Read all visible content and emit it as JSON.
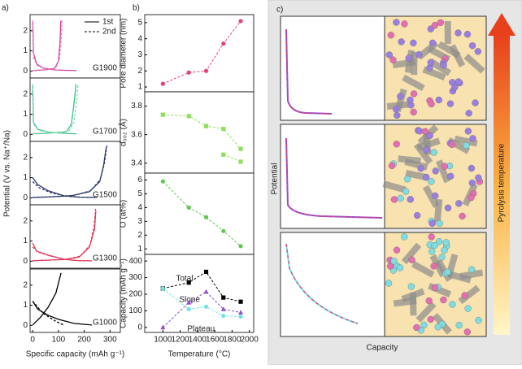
{
  "chart_data": [
    {
      "type": "line",
      "panel": "a)",
      "ylabel": "Potential (V vs. Na⁺/Na)",
      "label": "G1900",
      "label_color": "#d63f9e",
      "xlim": [
        -10,
        340
      ],
      "ylim": [
        -0.35,
        2.8
      ],
      "yticks": [
        0,
        1,
        2
      ],
      "legend": "upper right",
      "legend_color": "#000000",
      "series": [
        {
          "name": "1st",
          "color": "#d63f9e",
          "dash": false,
          "x": [
            0,
            3,
            15,
            40,
            90,
            170,
            null,
            0,
            40,
            85,
            100,
            106,
            109
          ],
          "values": [
            2.5,
            0.9,
            0.35,
            0.15,
            0.05,
            0.02,
            null,
            0.02,
            0.05,
            0.12,
            0.5,
            1.4,
            2.5
          ]
        },
        {
          "name": "2nd",
          "color": "#e07fc0",
          "dash": true,
          "x": [
            0,
            4,
            20,
            50,
            100,
            null,
            0,
            40,
            90,
            104,
            110,
            114
          ],
          "values": [
            2.5,
            0.6,
            0.25,
            0.1,
            0.03,
            null,
            0.03,
            0.06,
            0.15,
            0.6,
            1.5,
            2.5
          ]
        }
      ]
    },
    {
      "type": "line",
      "label": "G1700",
      "label_color": "#3cbf8a",
      "xlim": [
        -10,
        340
      ],
      "ylim": [
        -0.35,
        2.8
      ],
      "yticks": [
        0,
        1,
        2
      ],
      "series": [
        {
          "color": "#3cbf8a",
          "dash": false,
          "x": [
            0,
            3,
            20,
            60,
            120,
            170,
            null,
            0,
            50,
            130,
            150,
            160,
            168
          ],
          "values": [
            2.5,
            0.6,
            0.25,
            0.12,
            0.05,
            0.03,
            null,
            0.03,
            0.05,
            0.12,
            0.5,
            1.5,
            2.5
          ]
        },
        {
          "color": "#7fd9b0",
          "dash": true,
          "x": [
            0,
            4,
            25,
            70,
            130,
            null,
            0,
            60,
            140,
            160,
            170,
            176
          ],
          "values": [
            2.5,
            0.5,
            0.2,
            0.1,
            0.04,
            null,
            0.04,
            0.07,
            0.15,
            0.6,
            1.6,
            2.5
          ]
        }
      ]
    },
    {
      "type": "line",
      "label": "G1500",
      "label_color": "#2f3b6b",
      "xlim": [
        -10,
        340
      ],
      "ylim": [
        -0.35,
        2.8
      ],
      "yticks": [
        0,
        1,
        2
      ],
      "series": [
        {
          "color": "#2f3b6b",
          "dash": false,
          "x": [
            0,
            20,
            60,
            120,
            180,
            250,
            null,
            0,
            60,
            150,
            220,
            260,
            275,
            285
          ],
          "values": [
            1.0,
            0.65,
            0.35,
            0.1,
            0.03,
            0.02,
            null,
            0.02,
            0.04,
            0.1,
            0.3,
            0.8,
            1.6,
            2.5
          ]
        },
        {
          "color": "#2f3b6b",
          "dash": true,
          "x": [
            0,
            25,
            70,
            130,
            190,
            240,
            null,
            0,
            70,
            160,
            225,
            262,
            278,
            288
          ],
          "values": [
            0.8,
            0.5,
            0.25,
            0.08,
            0.03,
            0.02,
            null,
            0.02,
            0.05,
            0.12,
            0.35,
            0.9,
            1.7,
            2.6
          ]
        }
      ]
    },
    {
      "type": "line",
      "label": "G1300",
      "label_color": "#e23a5a",
      "xlim": [
        -10,
        340
      ],
      "ylim": [
        -0.35,
        2.8
      ],
      "yticks": [
        0,
        1,
        2
      ],
      "series": [
        {
          "color": "#e23a5a",
          "dash": false,
          "x": [
            0,
            15,
            60,
            120,
            170,
            230,
            null,
            0,
            50,
            120,
            180,
            220,
            240,
            245
          ],
          "values": [
            0.9,
            0.5,
            0.3,
            0.1,
            0.03,
            0.02,
            null,
            0.02,
            0.05,
            0.08,
            0.2,
            0.7,
            1.6,
            2.5
          ]
        },
        {
          "color": "#e23a5a",
          "dash": true,
          "x": [
            0,
            20,
            70,
            130,
            180,
            225,
            null,
            0,
            60,
            130,
            185,
            222,
            238,
            244
          ],
          "values": [
            0.7,
            0.45,
            0.25,
            0.08,
            0.03,
            0.02,
            null,
            0.02,
            0.05,
            0.1,
            0.25,
            0.8,
            1.7,
            2.6
          ]
        }
      ]
    },
    {
      "type": "line",
      "label": "G1000",
      "label_color": "#000000",
      "xlim": [
        -10,
        340
      ],
      "ylim": [
        -0.35,
        2.8
      ],
      "yticks": [
        0,
        1,
        2
      ],
      "xticks": [
        0,
        100,
        200,
        300
      ],
      "xlabel": "Specific capacity (mAh g⁻¹)",
      "series": [
        {
          "color": "#000000",
          "dash": false,
          "x": [
            0,
            20,
            60,
            100,
            160,
            230,
            null,
            0,
            30,
            60,
            90,
            110
          ],
          "values": [
            1.2,
            0.8,
            0.5,
            0.3,
            0.1,
            0.02,
            null,
            0.02,
            0.4,
            0.9,
            1.6,
            2.6
          ]
        },
        {
          "color": "#000000",
          "dash": true,
          "x": [
            0,
            40,
            90,
            120
          ],
          "values": [
            1.2,
            0.6,
            0.2,
            0.02
          ]
        }
      ]
    },
    {
      "type": "scatter-line",
      "panel": "b)",
      "ylabel": "Pore diameter (nm)",
      "x": [
        1000,
        1300,
        1500,
        1700,
        1900
      ],
      "xlim": [
        790,
        2050
      ],
      "ylim": [
        0.7,
        5.5
      ],
      "yticks": [
        1,
        2,
        3,
        4,
        5
      ],
      "series": [
        {
          "color": "#e5407c",
          "dash": true,
          "marker": "circle",
          "values": [
            1.2,
            1.9,
            2.0,
            3.7,
            5.1
          ]
        }
      ]
    },
    {
      "type": "scatter-line",
      "ylabel": "d₀₀₂ (Å)",
      "x": [
        1000,
        1300,
        1500,
        1700,
        1900
      ],
      "xlim": [
        790,
        2050
      ],
      "ylim": [
        3.33,
        3.9
      ],
      "yticks": [
        3.4,
        3.6,
        3.8
      ],
      "series": [
        {
          "color": "#8ee05a",
          "dash": true,
          "marker": "square",
          "values": [
            3.74,
            3.73,
            3.66,
            3.64,
            3.5
          ]
        },
        {
          "color": "#8ee05a",
          "dash": true,
          "marker": "square",
          "values": [
            null,
            null,
            null,
            3.46,
            3.41
          ]
        }
      ]
    },
    {
      "type": "scatter-line",
      "ylabel": "O (at%)",
      "x": [
        1000,
        1300,
        1500,
        1700,
        1900
      ],
      "xlim": [
        790,
        2050
      ],
      "ylim": [
        0.6,
        6.5
      ],
      "yticks": [
        1,
        2,
        3,
        4,
        5,
        6
      ],
      "series": [
        {
          "color": "#5ec94e",
          "dash": true,
          "marker": "circle",
          "values": [
            5.9,
            4.0,
            3.3,
            2.3,
            1.2
          ]
        }
      ]
    },
    {
      "type": "scatter-line",
      "ylabel": "Capacity (mAh g⁻¹)",
      "xlabel": "Temperature (°C)",
      "x": [
        1000,
        1300,
        1500,
        1700,
        1900
      ],
      "xlim": [
        790,
        2050
      ],
      "ylim": [
        -30,
        440
      ],
      "yticks": [
        0,
        100,
        200,
        300,
        400
      ],
      "xticks": [
        1000,
        1200,
        1400,
        1600,
        1800,
        2000
      ],
      "series": [
        {
          "name": "Total",
          "color": "#000000",
          "dash": true,
          "marker": "square",
          "values": [
            235,
            270,
            335,
            180,
            155
          ]
        },
        {
          "name": "Slope",
          "color": "#6fe3e3",
          "dash": true,
          "marker": "circle",
          "values": [
            235,
            110,
            125,
            70,
            65
          ]
        },
        {
          "name": "Plateau",
          "color": "#8a4ccf",
          "dash": true,
          "marker": "triangle",
          "values": [
            0,
            150,
            215,
            110,
            90
          ]
        }
      ]
    }
  ],
  "schematic": {
    "label": "c)",
    "ylabel": "Potential",
    "xlabel": "Capacity",
    "arrow_label": "Pyrolysis temperature"
  }
}
